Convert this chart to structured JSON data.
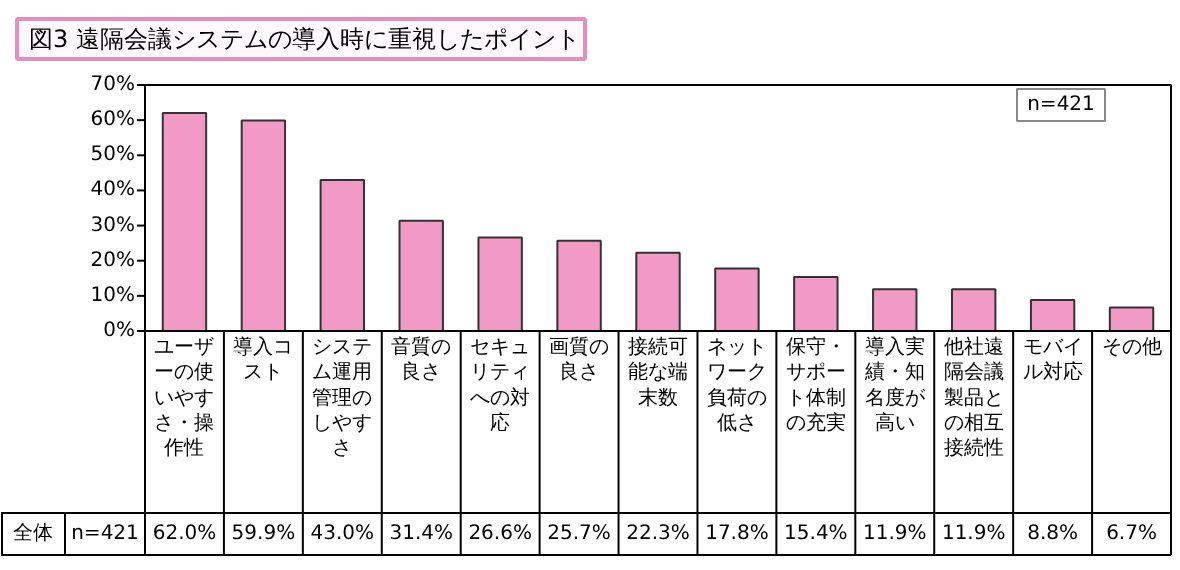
{
  "chart_data": {
    "type": "bar",
    "title": "図3 遠隔会議システムの導入時に重視したポイント",
    "categories": [
      "ユーザーの使いやすさ・操作性",
      "導入コスト",
      "システム運用管理のしやすさ",
      "音質の良さ",
      "セキュリティへの対応",
      "画質の良さ",
      "接続可能な端末数",
      "ネットワーク負荷の低さ",
      "保守・サポート体制の充実",
      "導入実績・知名度が高い",
      "他社遠隔会議製品との相互接続性",
      "モバイル対応",
      "その他"
    ],
    "values": [
      62.0,
      59.9,
      43.0,
      31.4,
      26.6,
      25.7,
      22.3,
      17.8,
      15.4,
      11.9,
      11.9,
      8.8,
      6.7
    ],
    "value_labels": [
      "62.0%",
      "59.9%",
      "43.0%",
      "31.4%",
      "26.6%",
      "25.7%",
      "22.3%",
      "17.8%",
      "15.4%",
      "11.9%",
      "11.9%",
      "8.8%",
      "6.7%"
    ],
    "color": "#f29ac6",
    "ylim": [
      0,
      70
    ],
    "yticks": [
      {
        "value": 0,
        "label": "0%"
      },
      {
        "value": 10,
        "label": "10%"
      },
      {
        "value": 20,
        "label": "20%"
      },
      {
        "value": 30,
        "label": "30%"
      },
      {
        "value": 40,
        "label": "40%"
      },
      {
        "value": 50,
        "label": "50%"
      },
      {
        "value": 60,
        "label": "60%"
      },
      {
        "value": 70,
        "label": "70%"
      }
    ],
    "annotations": [
      "n=421",
      "全体",
      "n=421"
    ],
    "grid": false
  }
}
